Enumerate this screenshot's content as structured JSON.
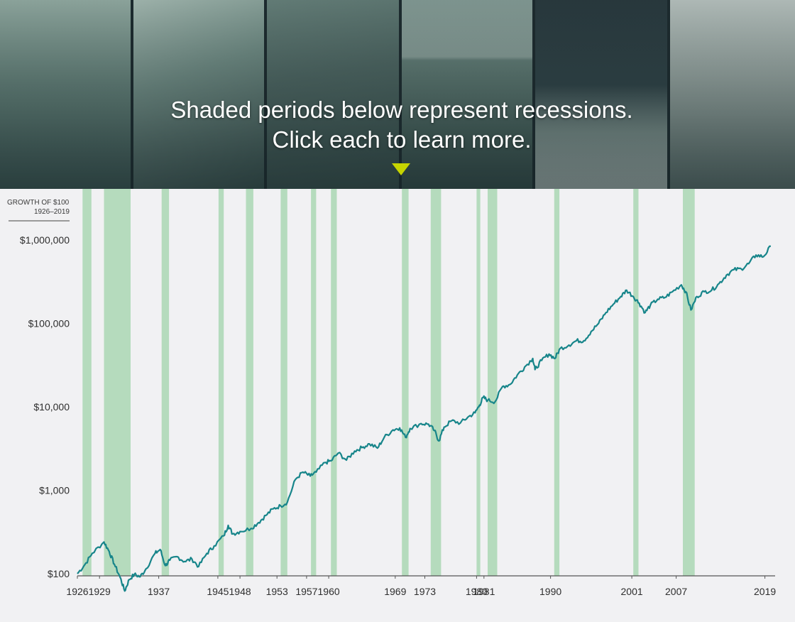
{
  "banner": {
    "line1": "Shaded periods below represent recessions.",
    "line2": "Click each to learn more.",
    "indicator_color": "#c6d400",
    "panels": [
      "photo-depression-family",
      "photo-crowd-portrait",
      "photo-protest-crowd",
      "photo-oil-pumpjack",
      "photo-president-speech",
      "photo-graffiti-subway"
    ]
  },
  "chart_title": {
    "line1": "GROWTH OF $100",
    "line2": "1926–2019"
  },
  "chart_data": {
    "type": "line",
    "title": "GROWTH OF $100 1926–2019",
    "y_scale": "log",
    "ylim": [
      100,
      1000000
    ],
    "xlim": [
      1926,
      2020
    ],
    "y_ticks": [
      {
        "value": 100,
        "label": "$100"
      },
      {
        "value": 1000,
        "label": "$1,000"
      },
      {
        "value": 10000,
        "label": "$10,000"
      },
      {
        "value": 100000,
        "label": "$100,000"
      },
      {
        "value": 1000000,
        "label": "$1,000,000"
      }
    ],
    "x_ticks": [
      {
        "value": 1926,
        "label": "1926"
      },
      {
        "value": 1929,
        "label": "1929"
      },
      {
        "value": 1937,
        "label": "1937"
      },
      {
        "value": 1945,
        "label": "1945"
      },
      {
        "value": 1948,
        "label": "1948"
      },
      {
        "value": 1953,
        "label": "1953"
      },
      {
        "value": 1957,
        "label": "1957"
      },
      {
        "value": 1960,
        "label": "1960"
      },
      {
        "value": 1969,
        "label": "1969"
      },
      {
        "value": 1973,
        "label": "1973"
      },
      {
        "value": 1980,
        "label": "1980"
      },
      {
        "value": 1981,
        "label": "1981"
      },
      {
        "value": 1990,
        "label": "1990"
      },
      {
        "value": 2001,
        "label": "2001"
      },
      {
        "value": 2007,
        "label": "2007"
      },
      {
        "value": 2019,
        "label": "2019"
      }
    ],
    "recessions": [
      {
        "start": 1926.7,
        "end": 1927.9
      },
      {
        "start": 1929.6,
        "end": 1933.2
      },
      {
        "start": 1937.4,
        "end": 1938.4
      },
      {
        "start": 1945.1,
        "end": 1945.8
      },
      {
        "start": 1948.8,
        "end": 1949.8
      },
      {
        "start": 1953.5,
        "end": 1954.4
      },
      {
        "start": 1957.6,
        "end": 1958.3
      },
      {
        "start": 1960.3,
        "end": 1961.1
      },
      {
        "start": 1969.9,
        "end": 1970.8
      },
      {
        "start": 1973.8,
        "end": 1975.2
      },
      {
        "start": 1980.0,
        "end": 1980.5
      },
      {
        "start": 1981.5,
        "end": 1982.8
      },
      {
        "start": 1990.5,
        "end": 1991.2
      },
      {
        "start": 2001.2,
        "end": 2001.9
      },
      {
        "start": 2007.9,
        "end": 2009.5
      }
    ],
    "series": [
      {
        "points": [
          [
            1926.0,
            100
          ],
          [
            1927.0,
            128
          ],
          [
            1928.0,
            175
          ],
          [
            1929.6,
            240
          ],
          [
            1930.3,
            185
          ],
          [
            1931.0,
            130
          ],
          [
            1931.8,
            90
          ],
          [
            1932.4,
            62
          ],
          [
            1933.0,
            85
          ],
          [
            1933.7,
            98
          ],
          [
            1934.5,
            92
          ],
          [
            1935.3,
            115
          ],
          [
            1936.5,
            175
          ],
          [
            1937.2,
            195
          ],
          [
            1937.9,
            125
          ],
          [
            1938.5,
            145
          ],
          [
            1939.5,
            160
          ],
          [
            1940.5,
            140
          ],
          [
            1941.5,
            150
          ],
          [
            1942.4,
            122
          ],
          [
            1943.5,
            175
          ],
          [
            1944.5,
            215
          ],
          [
            1945.8,
            285
          ],
          [
            1946.4,
            380
          ],
          [
            1947.0,
            300
          ],
          [
            1948.0,
            320
          ],
          [
            1949.5,
            350
          ],
          [
            1950.5,
            410
          ],
          [
            1951.5,
            500
          ],
          [
            1952.5,
            600
          ],
          [
            1953.5,
            650
          ],
          [
            1954.4,
            720
          ],
          [
            1955.5,
            1350
          ],
          [
            1956.5,
            1650
          ],
          [
            1957.5,
            1480
          ],
          [
            1958.3,
            1650
          ],
          [
            1959.5,
            2150
          ],
          [
            1960.3,
            2250
          ],
          [
            1961.3,
            2800
          ],
          [
            1962.4,
            2300
          ],
          [
            1963.5,
            2950
          ],
          [
            1964.5,
            3250
          ],
          [
            1965.5,
            3600
          ],
          [
            1966.6,
            3200
          ],
          [
            1967.5,
            4300
          ],
          [
            1968.7,
            5300
          ],
          [
            1969.6,
            5600
          ],
          [
            1970.4,
            4300
          ],
          [
            1971.0,
            5500
          ],
          [
            1972.5,
            6300
          ],
          [
            1973.5,
            6200
          ],
          [
            1974.3,
            5200
          ],
          [
            1974.9,
            3900
          ],
          [
            1975.6,
            5700
          ],
          [
            1976.6,
            6800
          ],
          [
            1977.8,
            6400
          ],
          [
            1978.8,
            7500
          ],
          [
            1979.8,
            8500
          ],
          [
            1980.4,
            10500
          ],
          [
            1980.9,
            13000
          ],
          [
            1981.5,
            12000
          ],
          [
            1982.5,
            11500
          ],
          [
            1983.5,
            17500
          ],
          [
            1984.5,
            18500
          ],
          [
            1985.5,
            24000
          ],
          [
            1986.5,
            30000
          ],
          [
            1987.6,
            38000
          ],
          [
            1987.9,
            28000
          ],
          [
            1988.8,
            36000
          ],
          [
            1989.8,
            43000
          ],
          [
            1990.6,
            38000
          ],
          [
            1991.3,
            50000
          ],
          [
            1992.5,
            55000
          ],
          [
            1993.5,
            62000
          ],
          [
            1994.5,
            62000
          ],
          [
            1995.5,
            80000
          ],
          [
            1996.5,
            100000
          ],
          [
            1997.5,
            135000
          ],
          [
            1998.5,
            170000
          ],
          [
            1999.5,
            210000
          ],
          [
            2000.3,
            250000
          ],
          [
            2001.2,
            210000
          ],
          [
            2002.0,
            175000
          ],
          [
            2002.8,
            135000
          ],
          [
            2003.5,
            165000
          ],
          [
            2004.5,
            195000
          ],
          [
            2005.5,
            205000
          ],
          [
            2006.5,
            240000
          ],
          [
            2007.7,
            290000
          ],
          [
            2008.3,
            240000
          ],
          [
            2009.0,
            145000
          ],
          [
            2009.8,
            210000
          ],
          [
            2010.8,
            240000
          ],
          [
            2011.8,
            250000
          ],
          [
            2012.8,
            300000
          ],
          [
            2013.8,
            380000
          ],
          [
            2014.8,
            440000
          ],
          [
            2015.8,
            450000
          ],
          [
            2016.8,
            520000
          ],
          [
            2017.8,
            660000
          ],
          [
            2018.8,
            630000
          ],
          [
            2019.8,
            840000
          ]
        ]
      }
    ]
  },
  "colors": {
    "line": "#17858a",
    "recession": "#b5dbbd",
    "axis": "#555555",
    "tick_text": "#2e2e2e",
    "background": "#f1f1f3"
  }
}
